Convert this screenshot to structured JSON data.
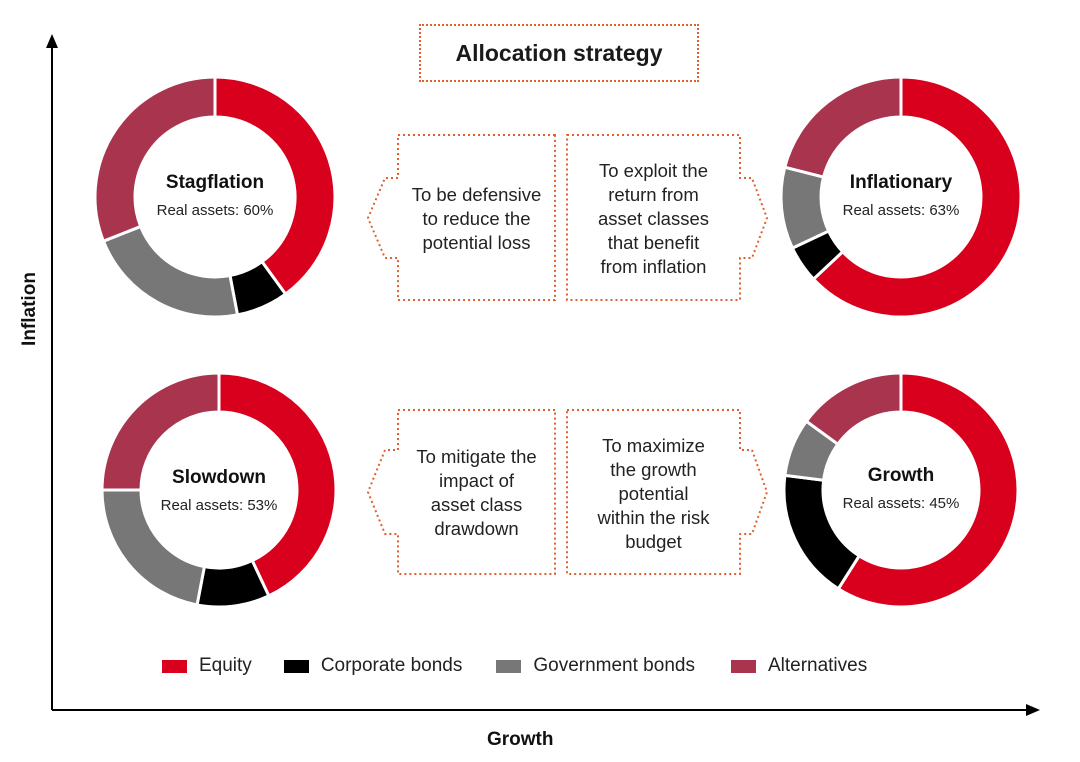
{
  "title": "Allocation strategy",
  "axes": {
    "x_label": "Growth",
    "y_label": "Inflation"
  },
  "colors": {
    "equity": "#d8001c",
    "corporate_bonds": "#000000",
    "government_bonds": "#777777",
    "alternatives": "#a8344e",
    "dotted_border": "#e06030",
    "axis": "#000000"
  },
  "chart_data": {
    "type": "pie",
    "series_names": [
      "Equity",
      "Corporate bonds",
      "Government bonds",
      "Alternatives"
    ],
    "charts": [
      {
        "name": "Stagflation",
        "subtitle": "Real assets: 60%",
        "values": [
          40,
          7,
          22,
          31
        ]
      },
      {
        "name": "Inflationary",
        "subtitle": "Real assets: 63%",
        "values": [
          63,
          5,
          11,
          21
        ]
      },
      {
        "name": "Slowdown",
        "subtitle": "Real assets: 53%",
        "values": [
          43,
          10,
          22,
          25
        ]
      },
      {
        "name": "Growth",
        "subtitle": "Real assets: 45%",
        "values": [
          59,
          18,
          8,
          15
        ]
      }
    ],
    "legend": [
      "Equity",
      "Corporate bonds",
      "Government bonds",
      "Alternatives"
    ],
    "legend_position": "bottom"
  },
  "notes": {
    "stagflation": [
      "To be defensive",
      "to reduce the",
      "potential loss"
    ],
    "inflationary": [
      "To exploit the",
      "return from",
      "asset classes",
      "that benefit",
      "from inflation"
    ],
    "slowdown": [
      "To mitigate the",
      "impact of",
      "asset class",
      "drawdown"
    ],
    "growth": [
      "To maximize",
      "the growth",
      "potential",
      "within the risk",
      "budget"
    ]
  }
}
